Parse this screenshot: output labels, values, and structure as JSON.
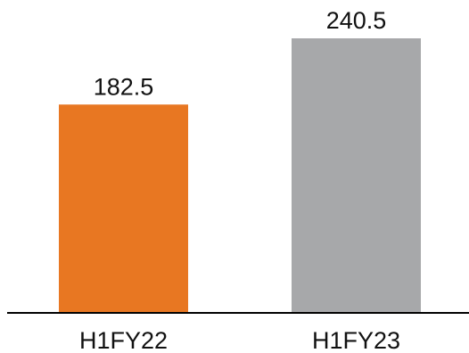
{
  "chart_data": {
    "type": "bar",
    "title": "",
    "xlabel": "",
    "ylabel": "",
    "categories": [
      "H1FY22",
      "H1FY23"
    ],
    "values": [
      182.5,
      240.5
    ],
    "data_labels": [
      "182.5",
      "240.5"
    ],
    "colors": [
      "#E87722",
      "#A7A8AA"
    ],
    "ylim": [
      0,
      270
    ],
    "grid": false,
    "legend": "none"
  }
}
